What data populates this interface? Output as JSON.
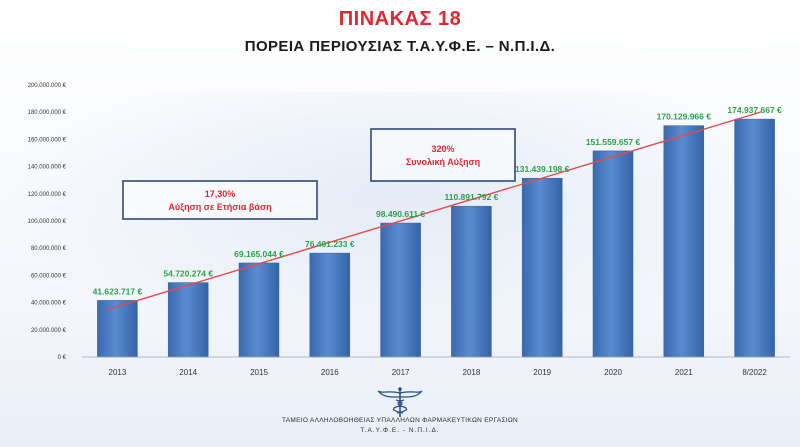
{
  "header": {
    "title": "ΠΙΝΑΚΑΣ 18",
    "subtitle": "ΠΟΡΕΙΑ ΠΕΡΙΟΥΣΙΑΣ Τ.Α.Υ.Φ.Ε. – Ν.Π.Ι.Δ."
  },
  "chart_data": {
    "type": "bar",
    "categories": [
      "2013",
      "2014",
      "2015",
      "2016",
      "2017",
      "2018",
      "2019",
      "2020",
      "2021",
      "8/2022"
    ],
    "values": [
      41623717,
      54720274,
      69165044,
      76401233,
      98490611,
      110891792,
      131439198,
      151559657,
      170129966,
      174937667
    ],
    "data_labels": [
      "41.623.717 €",
      "54.720.274 €",
      "69.165.044 €",
      "76.401.233 €",
      "98.490.611 €",
      "110.891.792 €",
      "131.439.198 €",
      "151.559.657 €",
      "170.129.966 €",
      "174.937.667 €"
    ],
    "y_ticks": [
      "0 €",
      "20.000.000 €",
      "40.000.000 €",
      "60.000.000 €",
      "80.000.000 €",
      "100.000.000 €",
      "120.000.000 €",
      "140.000.000 €",
      "160.000.000 €",
      "180.000.000 €",
      "200.000.000 €"
    ],
    "ylim": [
      0,
      200000000
    ],
    "trendline": true,
    "grid": false,
    "colors": {
      "bar": "#4f7fc2",
      "bar_dark": "#3563a8",
      "label": "#2ea04a",
      "trend": "#e44b4b",
      "box_border": "#2f4a78",
      "box_text": "#e3262f"
    },
    "annotations": [
      {
        "line1": "17,30%",
        "line2": "Αύξηση σε Ετήσια βάση"
      },
      {
        "line1": "320%",
        "line2": "Συνολική Αύξηση"
      }
    ]
  },
  "footer": {
    "org_line1": "ΤΑΜΕΙΟ ΑΛΛΗΛΟΒΟΗΘΕΙΑΣ ΥΠΑΛΛΗΛΩΝ ΦΑΡΜΑΚΕΥΤΙΚΩΝ ΕΡΓΑΣΙΩΝ",
    "org_line2": "Τ.Α.Υ.Φ.Ε. - Ν.Π.Ι.Δ.",
    "logo_icon": "caduceus-icon"
  }
}
